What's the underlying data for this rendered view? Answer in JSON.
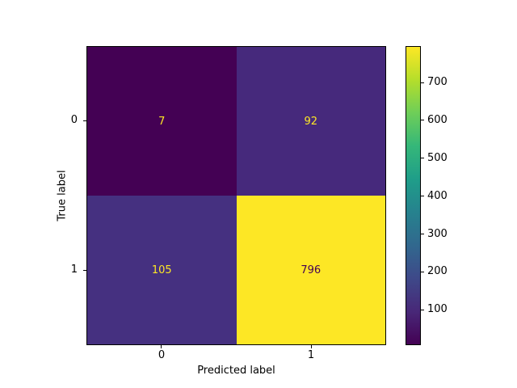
{
  "figure": {
    "background_color": "#ffffff",
    "text_color": "#000000",
    "spine_color": "#000000"
  },
  "chart_data": {
    "type": "heatmap",
    "title": "",
    "xlabel": "Predicted label",
    "ylabel": "True label",
    "x_ticklabels": [
      "0",
      "1"
    ],
    "y_ticklabels": [
      "0",
      "1"
    ],
    "matrix": [
      [
        7,
        92
      ],
      [
        105,
        796
      ]
    ],
    "colormap": "viridis",
    "vmin": 7,
    "vmax": 796,
    "colorbar_ticks": [
      100,
      200,
      300,
      400,
      500,
      600,
      700
    ],
    "colorbar_position": "right",
    "grid": false,
    "cell_colors": [
      [
        "#440154",
        "#46297c"
      ],
      [
        "#453080",
        "#fde725"
      ]
    ],
    "cell_text_colors": [
      [
        "#fde725",
        "#fde725"
      ],
      [
        "#fde725",
        "#440154"
      ]
    ],
    "viridis_stops": [
      "#440154",
      "#482878",
      "#3e4989",
      "#31688e",
      "#26828e",
      "#1f9e89",
      "#35b779",
      "#6ece58",
      "#b5de2b",
      "#fde725"
    ]
  }
}
